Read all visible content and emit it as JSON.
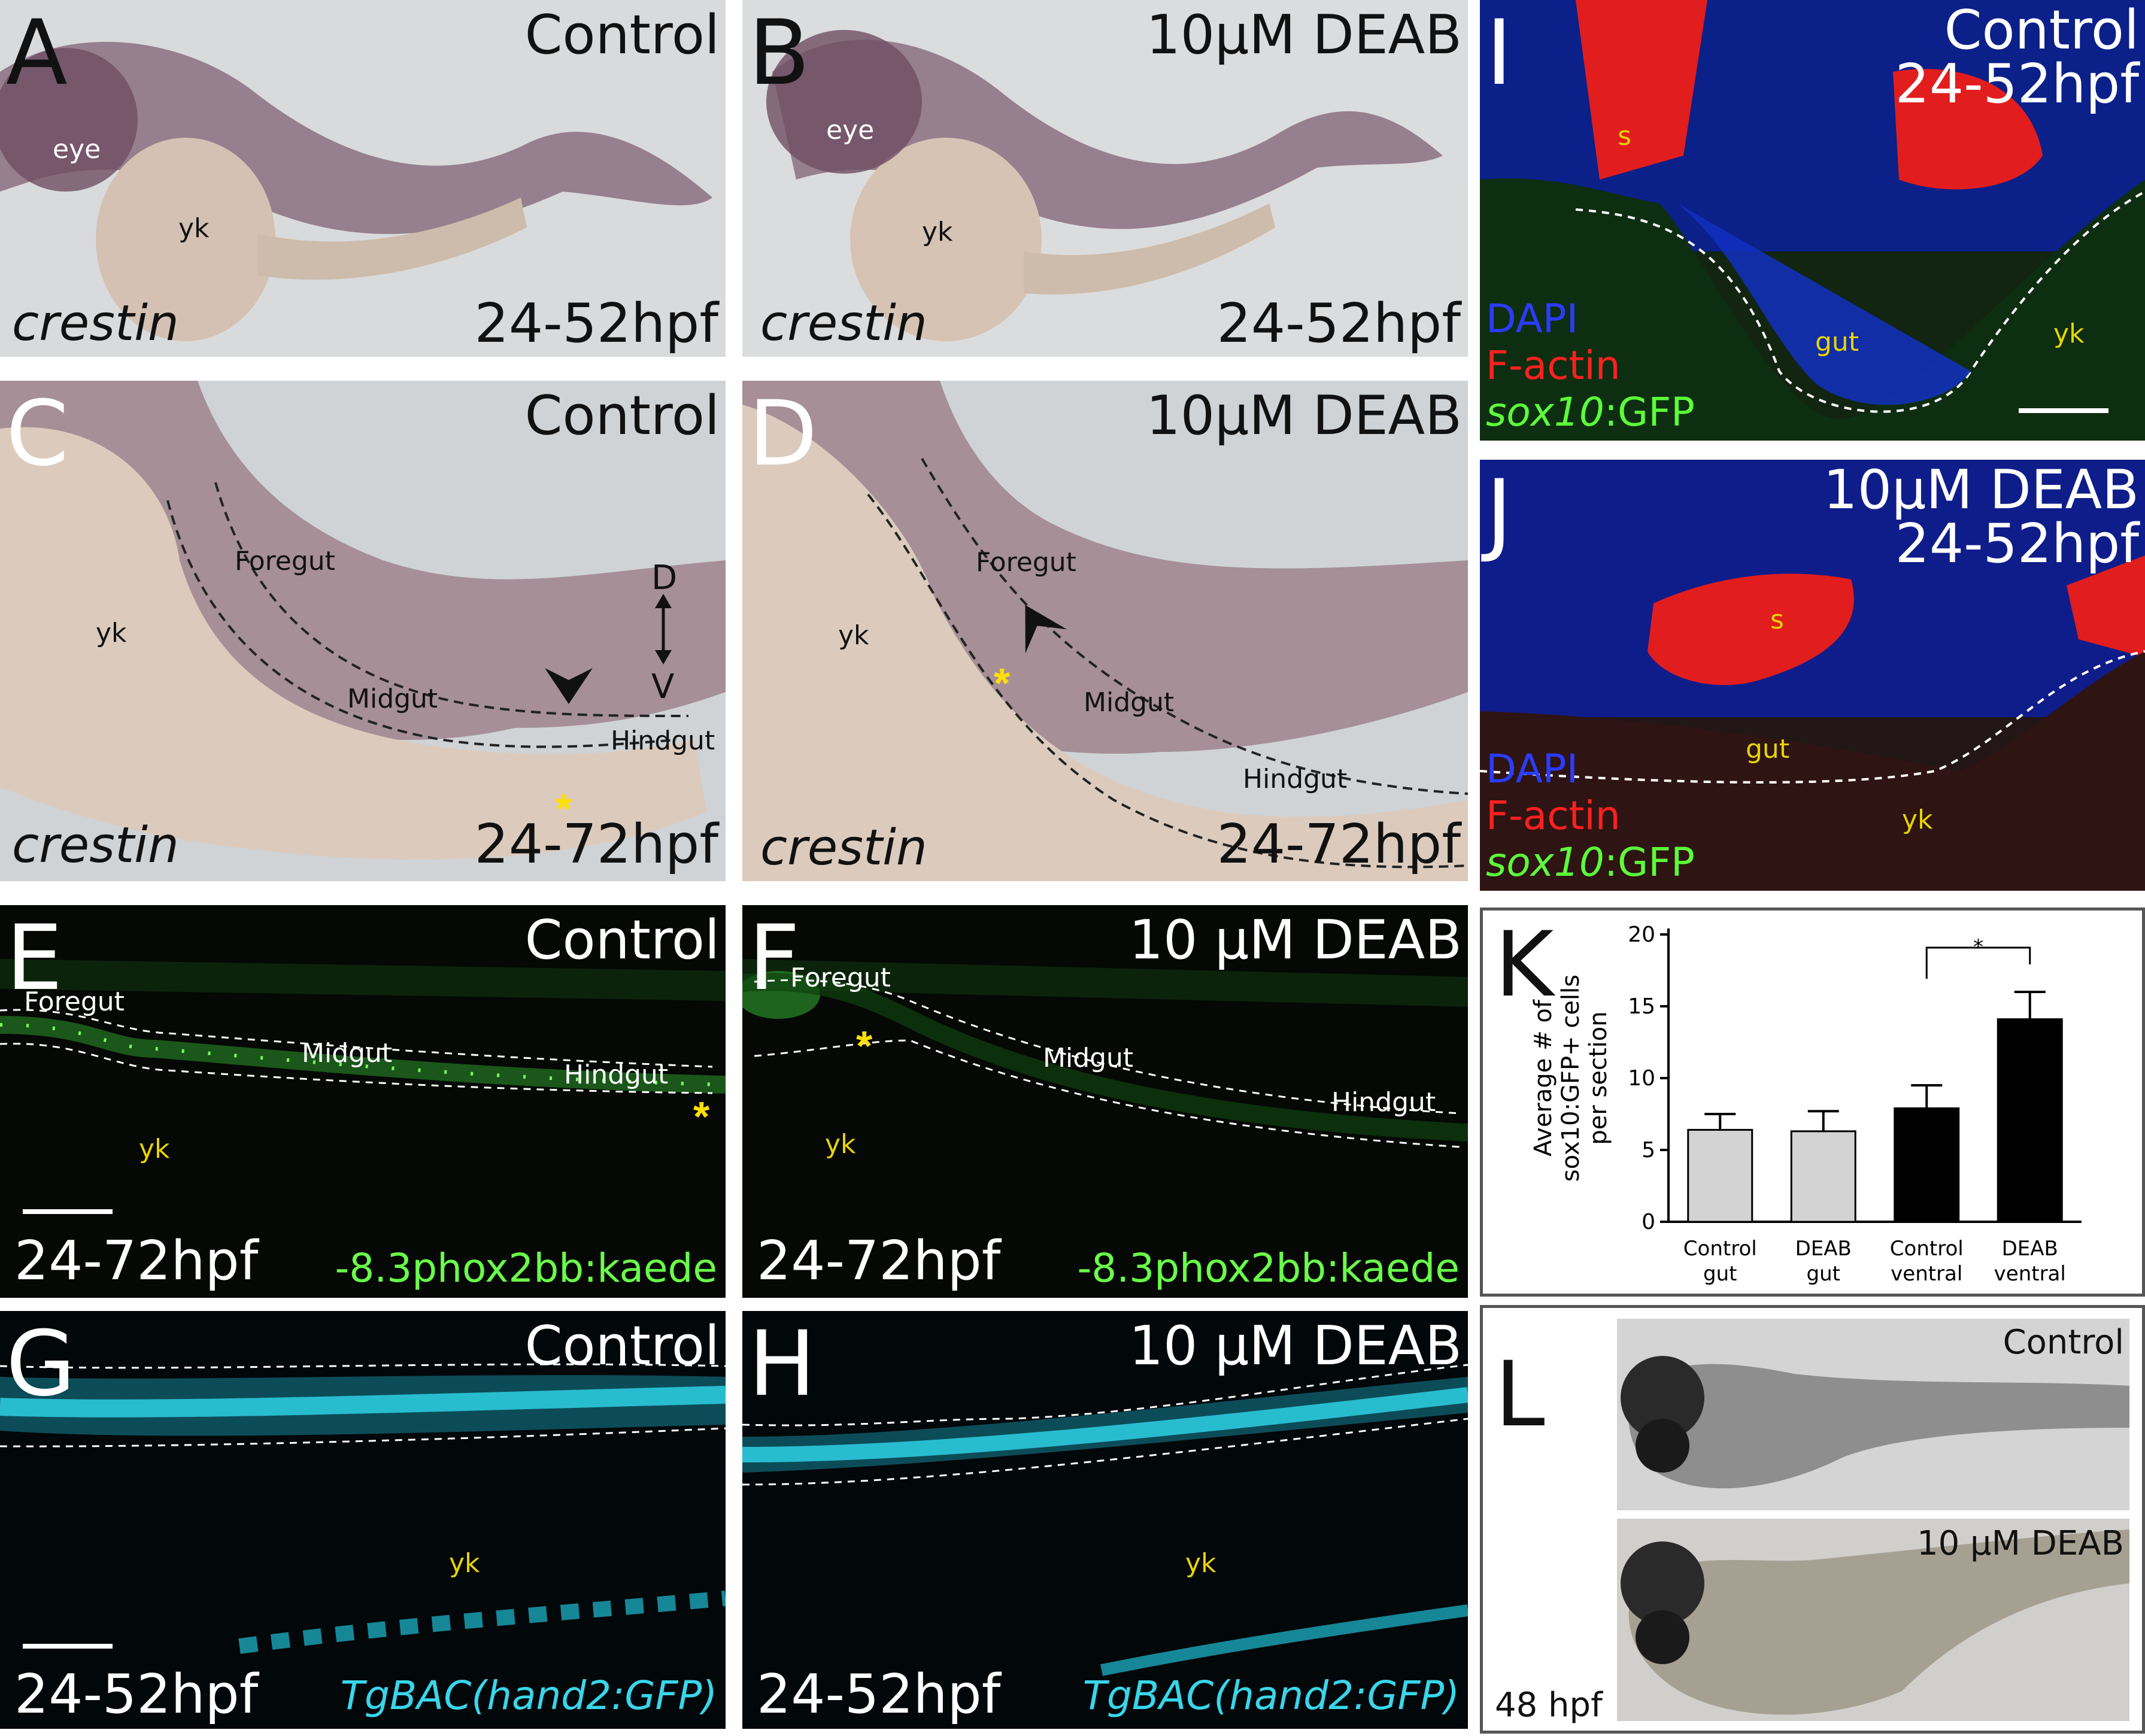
{
  "panels": {
    "A": {
      "letter": "A",
      "condition": "Control",
      "stage": "24-52hpf",
      "gene": "crestin",
      "eye": "eye",
      "yk": "yk"
    },
    "B": {
      "letter": "B",
      "condition": "10μM DEAB",
      "stage": "24-52hpf",
      "gene": "crestin",
      "eye": "eye",
      "yk": "yk"
    },
    "C": {
      "letter": "C",
      "condition": "Control",
      "stage": "24-72hpf",
      "gene": "crestin",
      "yk": "yk",
      "foregut": "Foregut",
      "midgut": "Midgut",
      "hindgut": "Hindgut",
      "asterisk": "*",
      "axis_d": "D",
      "axis_v": "V"
    },
    "D": {
      "letter": "D",
      "condition": "10μM DEAB",
      "stage": "24-72hpf",
      "gene": "crestin",
      "yk": "yk",
      "foregut": "Foregut",
      "midgut": "Midgut",
      "hindgut": "Hindgut",
      "asterisk": "*"
    },
    "E": {
      "letter": "E",
      "condition": "Control",
      "stage": "24-72hpf",
      "reporter": "-8.3phox2bb:kaede",
      "foregut": "Foregut",
      "midgut": "Midgut",
      "hindgut": "Hindgut",
      "yk": "yk",
      "asterisk": "*"
    },
    "F": {
      "letter": "F",
      "condition": "10 μM DEAB",
      "stage": "24-72hpf",
      "reporter": "-8.3phox2bb:kaede",
      "foregut": "Foregut",
      "midgut": "Midgut",
      "hindgut": "Hindgut",
      "yk": "yk",
      "asterisk": "*"
    },
    "G": {
      "letter": "G",
      "condition": "Control",
      "stage": "24-52hpf",
      "reporter": "TgBAC(hand2:GFP)",
      "yk": "yk"
    },
    "H": {
      "letter": "H",
      "condition": "10 μM DEAB",
      "stage": "24-52hpf",
      "reporter": "TgBAC(hand2:GFP)",
      "yk": "yk"
    },
    "I": {
      "letter": "I",
      "condition": "Control",
      "stage": "24-52hpf",
      "s": "s",
      "gut": "gut",
      "yk": "yk",
      "dapi": "DAPI",
      "factin": "F-actin",
      "sox10": "sox10",
      "gfp": ":GFP"
    },
    "J": {
      "letter": "J",
      "condition": "10μM DEAB",
      "stage": "24-52hpf",
      "s": "s",
      "gut": "gut",
      "yk": "yk",
      "dapi": "DAPI",
      "factin": "F-actin",
      "sox10": "sox10",
      "gfp": ":GFP"
    },
    "K": {
      "letter": "K"
    },
    "L": {
      "letter": "L",
      "control": "Control",
      "deab": "10 μM DEAB",
      "stage": "48 hpf"
    }
  },
  "chart_data": {
    "type": "bar",
    "categories": [
      "Control gut",
      "DEAB gut",
      "Control ventral",
      "DEAB ventral"
    ],
    "category_lines": [
      [
        "Control",
        "gut"
      ],
      [
        "DEAB",
        "gut"
      ],
      [
        "Control",
        "ventral"
      ],
      [
        "DEAB",
        "ventral"
      ]
    ],
    "values": [
      6.4,
      6.3,
      7.9,
      14.1
    ],
    "errors": [
      1.1,
      1.4,
      1.6,
      1.9
    ],
    "colors": [
      "#d3d3d3",
      "#d3d3d3",
      "#000000",
      "#000000"
    ],
    "ylabel_lines": [
      "Average # of",
      "sox10:GFP+ cells",
      "per section"
    ],
    "ylim": [
      0,
      20
    ],
    "yticks": [
      0,
      5,
      10,
      15,
      20
    ],
    "significance": {
      "between": [
        2,
        3
      ],
      "label": "*"
    }
  }
}
